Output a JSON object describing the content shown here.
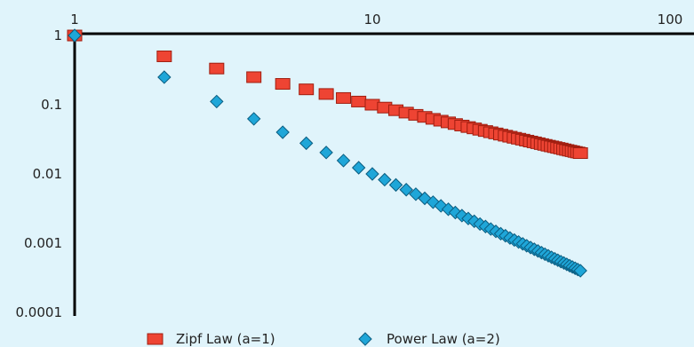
{
  "chart_data": {
    "type": "scatter",
    "title": "",
    "xlabel": "",
    "ylabel": "",
    "x_scale": "log",
    "y_scale": "log",
    "xlim": [
      1,
      100
    ],
    "ylim": [
      0.0001,
      1.5
    ],
    "x_ticks": [
      {
        "value": 1,
        "label": "1"
      },
      {
        "value": 10,
        "label": "10"
      },
      {
        "value": 100,
        "label": "100"
      }
    ],
    "y_ticks": [
      {
        "value": 1,
        "label": "1"
      },
      {
        "value": 0.1,
        "label": "0.1"
      },
      {
        "value": 0.01,
        "label": "0.01"
      },
      {
        "value": 0.001,
        "label": "0.001"
      },
      {
        "value": 0.0001,
        "label": "0.0001"
      }
    ],
    "x_axis_position": "top",
    "grid": false,
    "legend_position": "bottom",
    "series": [
      {
        "name": "Zipf Law (a=1)",
        "marker": "square",
        "color": "#ee4433",
        "exponent": 1,
        "x": [
          1,
          2,
          3,
          4,
          5,
          6,
          7,
          8,
          9,
          10,
          11,
          12,
          13,
          14,
          15,
          16,
          17,
          18,
          19,
          20,
          21,
          22,
          23,
          24,
          25,
          26,
          27,
          28,
          29,
          30,
          31,
          32,
          33,
          34,
          35,
          36,
          37,
          38,
          39,
          40,
          41,
          42,
          43,
          44,
          45,
          46,
          47,
          48,
          49,
          50
        ],
        "y": [
          1,
          0.5,
          0.3333,
          0.25,
          0.2,
          0.1667,
          0.1429,
          0.125,
          0.1111,
          0.1,
          0.0909,
          0.0833,
          0.0769,
          0.0714,
          0.0667,
          0.0625,
          0.0588,
          0.0556,
          0.0526,
          0.05,
          0.0476,
          0.0455,
          0.0435,
          0.0417,
          0.04,
          0.0385,
          0.037,
          0.0357,
          0.0345,
          0.0333,
          0.0323,
          0.0313,
          0.0303,
          0.0294,
          0.0286,
          0.0278,
          0.027,
          0.0263,
          0.0256,
          0.025,
          0.0244,
          0.0238,
          0.0233,
          0.0227,
          0.0222,
          0.0217,
          0.0213,
          0.0208,
          0.0204,
          0.02
        ]
      },
      {
        "name": "Power Law (a=2)",
        "marker": "diamond",
        "color": "#1fa6d8",
        "exponent": 2,
        "x": [
          1,
          2,
          3,
          4,
          5,
          6,
          7,
          8,
          9,
          10,
          11,
          12,
          13,
          14,
          15,
          16,
          17,
          18,
          19,
          20,
          21,
          22,
          23,
          24,
          25,
          26,
          27,
          28,
          29,
          30,
          31,
          32,
          33,
          34,
          35,
          36,
          37,
          38,
          39,
          40,
          41,
          42,
          43,
          44,
          45,
          46,
          47,
          48,
          49,
          50
        ],
        "y": [
          1,
          0.25,
          0.1111,
          0.0625,
          0.04,
          0.0278,
          0.0204,
          0.0156,
          0.0123,
          0.01,
          0.00826,
          0.00694,
          0.00592,
          0.0051,
          0.00444,
          0.00391,
          0.00346,
          0.00309,
          0.00277,
          0.0025,
          0.00227,
          0.00207,
          0.00189,
          0.00174,
          0.0016,
          0.00148,
          0.00137,
          0.00128,
          0.00119,
          0.00111,
          0.00104,
          0.000977,
          0.000918,
          0.000865,
          0.000816,
          0.000772,
          0.00073,
          0.000693,
          0.000657,
          0.000625,
          0.000595,
          0.000567,
          0.000541,
          0.000517,
          0.000494,
          0.000473,
          0.000453,
          0.000434,
          0.000416,
          0.0004
        ]
      }
    ]
  }
}
